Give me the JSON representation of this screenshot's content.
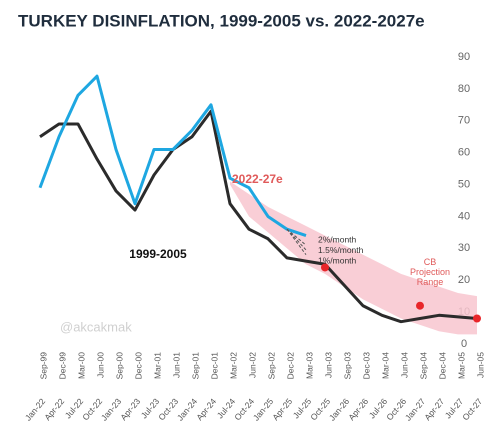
{
  "chart_data": {
    "type": "line",
    "title": "TURKEY DISINFLATION, 1999-2005 vs. 2022-2027e",
    "categories": [
      "Jan-22",
      "Apr-22",
      "Jul-22",
      "Oct-22",
      "Jan-23",
      "Apr-23",
      "Jul-23",
      "Oct-23",
      "Jan-24",
      "Apr-24",
      "Jul-24",
      "Oct-24",
      "Jan-25",
      "Apr-25",
      "Jul-25",
      "Oct-25",
      "Jan-26",
      "Apr-26",
      "Jul-26",
      "Oct-26",
      "Jan-27",
      "Apr-27",
      "Jul-27",
      "Oct-27"
    ],
    "categories_top": [
      "Sep-99",
      "Dec-99",
      "Mar-00",
      "Jun-00",
      "Sep-00",
      "Dec-00",
      "Mar-01",
      "Jun-01",
      "Sep-01",
      "Dec-01",
      "Mar-02",
      "Jun-02",
      "Sep-02",
      "Dec-02",
      "Mar-03",
      "Jun-03",
      "Sep-03",
      "Dec-03",
      "Mar-04",
      "Jun-04",
      "Sep-04",
      "Dec-04",
      "Mar-05",
      "Jun-05"
    ],
    "series": [
      {
        "name": "1999-2005",
        "color": "#2b2b2b",
        "values": [
          65,
          69,
          69,
          58,
          48,
          42,
          53,
          61,
          65,
          73,
          44,
          36,
          33,
          27,
          26,
          25,
          18.5,
          12,
          9,
          7,
          8,
          9,
          8.5,
          8
        ]
      },
      {
        "name": "2022-27e",
        "color": "#1ea7e1",
        "values": [
          49,
          65,
          78,
          84,
          61,
          44,
          61,
          61,
          67,
          75,
          52,
          49,
          40,
          36,
          34,
          null,
          null,
          null,
          null,
          null,
          null,
          null,
          null,
          null
        ]
      },
      {
        "name": "2%/month",
        "color": "#555555",
        "dashed": true,
        "values": [
          null,
          null,
          null,
          null,
          null,
          null,
          null,
          null,
          null,
          null,
          null,
          null,
          null,
          36,
          31,
          null,
          null,
          null,
          null,
          null,
          null,
          null,
          null,
          null
        ]
      },
      {
        "name": "1.5%/month",
        "color": "#555555",
        "dashed": true,
        "values": [
          null,
          null,
          null,
          null,
          null,
          null,
          null,
          null,
          null,
          null,
          null,
          null,
          null,
          36,
          29.5,
          null,
          null,
          null,
          null,
          null,
          null,
          null,
          null,
          null
        ]
      },
      {
        "name": "1%/month",
        "color": "#555555",
        "dashed": true,
        "values": [
          null,
          null,
          null,
          null,
          null,
          null,
          null,
          null,
          null,
          null,
          null,
          null,
          null,
          36,
          28,
          null,
          null,
          null,
          null,
          null,
          null,
          null,
          null,
          null
        ]
      }
    ],
    "range": {
      "name": "CB Projection Range",
      "color": "#f8c6cf",
      "upper": [
        null,
        null,
        null,
        null,
        null,
        null,
        null,
        null,
        null,
        null,
        51,
        47,
        43,
        40,
        37,
        34,
        31,
        28,
        25,
        22,
        20,
        18,
        16,
        15
      ],
      "lower": [
        null,
        null,
        null,
        null,
        null,
        null,
        null,
        null,
        null,
        null,
        50,
        40,
        35,
        30,
        25,
        22,
        18,
        14,
        11,
        8,
        6,
        4,
        3,
        3
      ]
    },
    "targets": {
      "color": "#e8262a",
      "values": [
        null,
        null,
        null,
        null,
        null,
        null,
        null,
        null,
        null,
        null,
        null,
        null,
        null,
        null,
        null,
        24,
        null,
        null,
        null,
        null,
        12,
        null,
        null,
        8
      ]
    },
    "ylim": [
      0,
      90
    ],
    "yticks": [
      0,
      10,
      20,
      30,
      40,
      50,
      60,
      70,
      80,
      90
    ],
    "watermark": "@akcakmak"
  }
}
